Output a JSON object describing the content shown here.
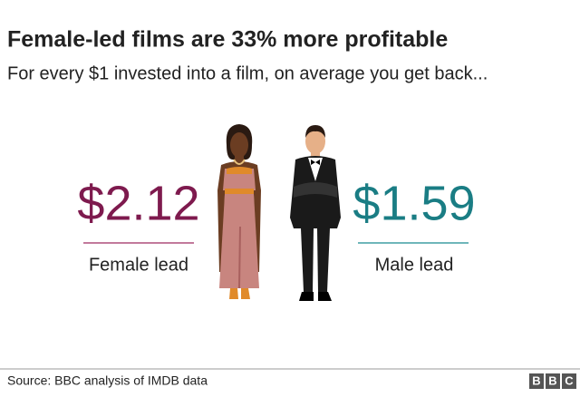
{
  "header": {
    "title": "Female-led films are 33% more profitable",
    "subtitle": "For every $1 invested into a film, on average you get back..."
  },
  "comparison": [
    {
      "value": "$2.12",
      "label": "Female lead"
    },
    {
      "value": "$1.59",
      "label": "Male lead"
    }
  ],
  "footer": {
    "source": "Source: BBC analysis of IMDB data",
    "logo": [
      "B",
      "B",
      "C"
    ]
  }
}
